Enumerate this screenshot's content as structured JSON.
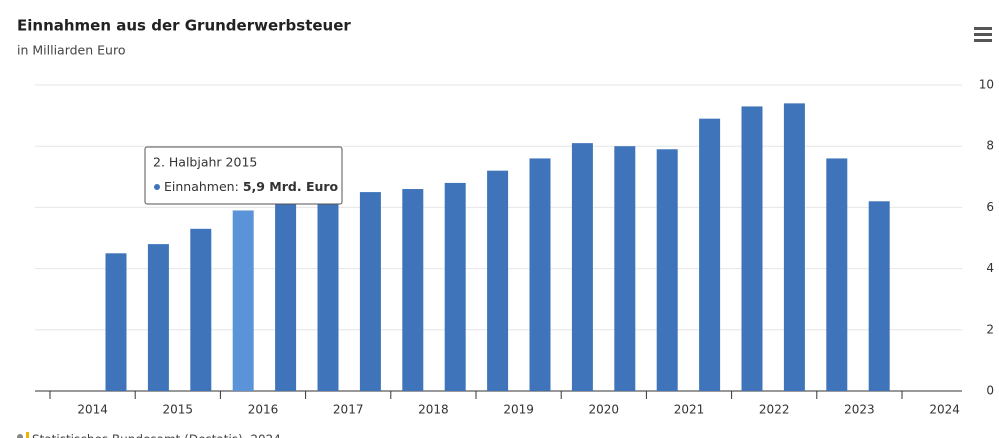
{
  "chart_data": {
    "type": "bar",
    "title": "Einnahmen aus der Grunderwerbsteuer",
    "subtitle": "in Milliarden Euro",
    "categories": [
      null,
      null,
      null,
      null,
      null,
      null,
      null,
      null,
      null,
      null,
      null,
      null,
      null,
      null,
      null,
      null,
      null,
      null,
      null
    ],
    "series": [
      {
        "name": "Einnahmen",
        "color": "#3f74ba",
        "values": [
          4.5,
          4.8,
          5.3,
          5.9,
          6.2,
          6.3,
          6.5,
          6.6,
          6.8,
          7.2,
          7.6,
          8.1,
          8.0,
          7.9,
          8.9,
          9.3,
          9.4,
          7.6,
          6.2
        ]
      }
    ],
    "highlight_color": "#5b93d8",
    "xticks": [
      "2014",
      "2015",
      "2016",
      "2017",
      "2018",
      "2019",
      "2020",
      "2021",
      "2022",
      "2023",
      "2024"
    ],
    "ylim": [
      0,
      10
    ],
    "yticks": [
      0,
      2,
      4,
      6,
      8,
      10
    ],
    "grid": true,
    "tooltip": {
      "index": 3,
      "title": "2. Halbjahr 2015",
      "label": "Einnahmen:",
      "value_label": "5,9 Mrd. Euro"
    },
    "source": "Statistisches Bundesamt (Destatis), 2024"
  }
}
